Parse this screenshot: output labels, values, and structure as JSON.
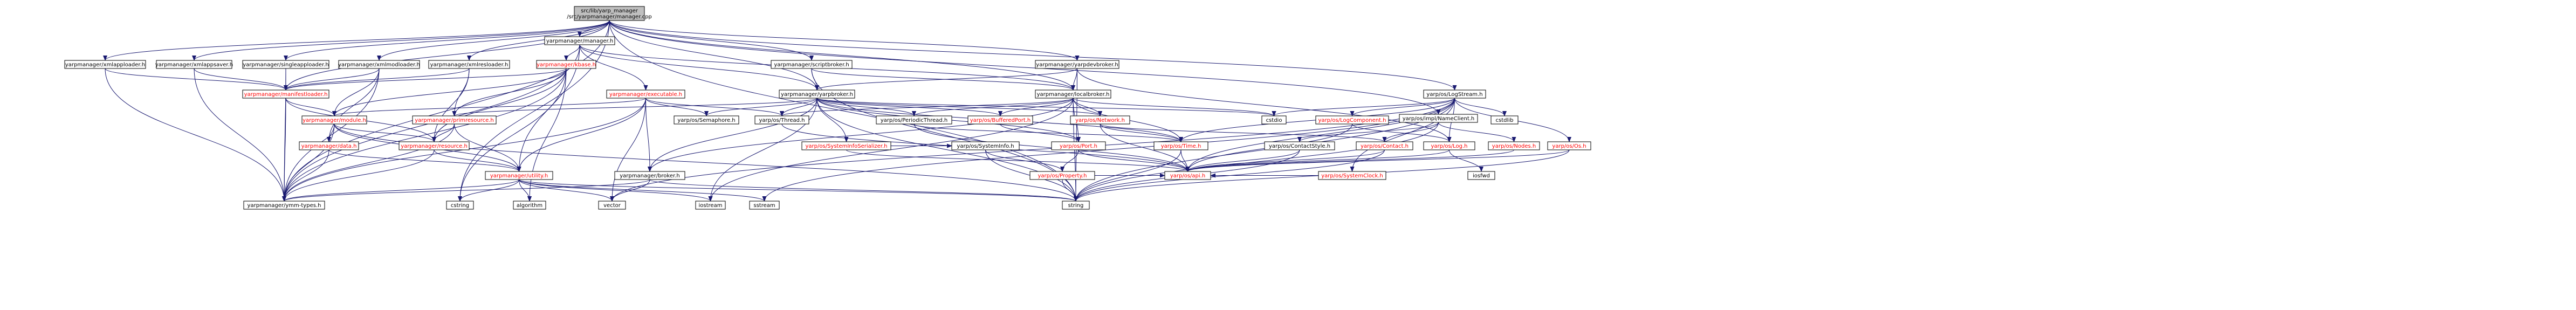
{
  "colors": {
    "edge": "#191970",
    "node_border": "#000000",
    "node_fill": "#ffffff",
    "root_fill": "#bfbfbf",
    "text_normal": "#000000",
    "text_link": "#ff0000"
  },
  "root": {
    "line1": "src/lib/yarp_manager",
    "line2": "/src/yarpmanager/manager.cpp"
  },
  "nodes": [
    {
      "id": "root",
      "label": "src/lib/yarp_manager\n/src/yarpmanager/manager.cpp",
      "kind": "root"
    },
    {
      "id": "xmlapploader",
      "label": "yarpmanager/xmlapploader.h",
      "kind": "normal"
    },
    {
      "id": "xmlappsaver",
      "label": "yarpmanager/xmlappsaver.h",
      "kind": "normal"
    },
    {
      "id": "singleapploader",
      "label": "yarpmanager/singleapploader.h",
      "kind": "normal"
    },
    {
      "id": "xmlmodloader",
      "label": "yarpmanager/xmlmodloader.h",
      "kind": "normal"
    },
    {
      "id": "xmlresloader",
      "label": "yarpmanager/xmlresloader.h",
      "kind": "normal"
    },
    {
      "id": "manager_h",
      "label": "yarpmanager/manager.h",
      "kind": "normal"
    },
    {
      "id": "kbase",
      "label": "yarpmanager/kbase.h",
      "kind": "link"
    },
    {
      "id": "scriptbroker",
      "label": "yarpmanager/scriptbroker.h",
      "kind": "normal"
    },
    {
      "id": "yarpdevbroker",
      "label": "yarpmanager/yarpdevbroker.h",
      "kind": "normal"
    },
    {
      "id": "manifestloader",
      "label": "yarpmanager/manifestloader.h",
      "kind": "link"
    },
    {
      "id": "executable",
      "label": "yarpmanager/executable.h",
      "kind": "link"
    },
    {
      "id": "yarpbroker",
      "label": "yarpmanager/yarpbroker.h",
      "kind": "normal"
    },
    {
      "id": "localbroker",
      "label": "yarpmanager/localbroker.h",
      "kind": "normal"
    },
    {
      "id": "logstream",
      "label": "yarp/os/LogStream.h",
      "kind": "normal"
    },
    {
      "id": "module",
      "label": "yarpmanager/module.h",
      "kind": "link"
    },
    {
      "id": "primresource",
      "label": "yarpmanager/primresource.h",
      "kind": "link"
    },
    {
      "id": "semaphore",
      "label": "yarp/os/Semaphore.h",
      "kind": "normal"
    },
    {
      "id": "thread",
      "label": "yarp/os/Thread.h",
      "kind": "normal"
    },
    {
      "id": "periodicthread",
      "label": "yarp/os/PeriodicThread.h",
      "kind": "normal"
    },
    {
      "id": "bufferedport",
      "label": "yarp/os/BufferedPort.h",
      "kind": "link"
    },
    {
      "id": "network",
      "label": "yarp/os/Network.h",
      "kind": "link"
    },
    {
      "id": "cstdio",
      "label": "cstdio",
      "kind": "normal"
    },
    {
      "id": "logcomponent",
      "label": "yarp/os/LogComponent.h",
      "kind": "link"
    },
    {
      "id": "namelient",
      "label": "yarp/os/impl/NameClient.h",
      "kind": "normal"
    },
    {
      "id": "cstdlib",
      "label": "cstdlib",
      "kind": "normal"
    },
    {
      "id": "systeminfoserializer",
      "label": "yarp/os/SystemInfoSerializer.h",
      "kind": "link"
    },
    {
      "id": "data",
      "label": "yarpmanager/data.h",
      "kind": "link"
    },
    {
      "id": "resource",
      "label": "yarpmanager/resource.h",
      "kind": "link"
    },
    {
      "id": "systeminfo",
      "label": "yarp/os/SystemInfo.h",
      "kind": "normal"
    },
    {
      "id": "port",
      "label": "yarp/os/Port.h",
      "kind": "link"
    },
    {
      "id": "time",
      "label": "yarp/os/Time.h",
      "kind": "link"
    },
    {
      "id": "contactstyle",
      "label": "yarp/os/ContactStyle.h",
      "kind": "normal"
    },
    {
      "id": "contact",
      "label": "yarp/os/Contact.h",
      "kind": "link"
    },
    {
      "id": "log",
      "label": "yarp/os/Log.h",
      "kind": "link"
    },
    {
      "id": "nodes",
      "label": "yarp/os/Nodes.h",
      "kind": "link"
    },
    {
      "id": "os",
      "label": "yarp/os/Os.h",
      "kind": "link"
    },
    {
      "id": "broker",
      "label": "yarpmanager/broker.h",
      "kind": "normal"
    },
    {
      "id": "utility",
      "label": "yarpmanager/utility.h",
      "kind": "link"
    },
    {
      "id": "property",
      "label": "yarp/os/Property.h",
      "kind": "link"
    },
    {
      "id": "api",
      "label": "yarp/os/api.h",
      "kind": "link"
    },
    {
      "id": "systemclock",
      "label": "yarp/os/SystemClock.h",
      "kind": "link"
    },
    {
      "id": "iosfwd",
      "label": "iosfwd",
      "kind": "normal"
    },
    {
      "id": "ymmtypes",
      "label": "yarpmanager/ymm-types.h",
      "kind": "normal"
    },
    {
      "id": "cstring",
      "label": "cstring",
      "kind": "normal"
    },
    {
      "id": "algorithm",
      "label": "algorithm",
      "kind": "normal"
    },
    {
      "id": "vector",
      "label": "vector",
      "kind": "normal"
    },
    {
      "id": "iostream",
      "label": "iostream",
      "kind": "normal"
    },
    {
      "id": "sstream",
      "label": "sstream",
      "kind": "normal"
    },
    {
      "id": "string",
      "label": "string",
      "kind": "normal"
    }
  ],
  "edges": [
    [
      "root",
      "xmlapploader"
    ],
    [
      "root",
      "xmlappsaver"
    ],
    [
      "root",
      "singleapploader"
    ],
    [
      "root",
      "xmlmodloader"
    ],
    [
      "root",
      "xmlresloader"
    ],
    [
      "root",
      "manager_h"
    ],
    [
      "root",
      "scriptbroker"
    ],
    [
      "root",
      "yarpdevbroker"
    ],
    [
      "root",
      "logstream"
    ],
    [
      "root",
      "namelient"
    ],
    [
      "root",
      "yarpbroker"
    ],
    [
      "root",
      "localbroker"
    ],
    [
      "root",
      "cstring"
    ],
    [
      "root",
      "ymmtypes"
    ],
    [
      "root",
      "manifestloader"
    ],
    [
      "root",
      "string"
    ],
    [
      "xmlapploader",
      "manifestloader"
    ],
    [
      "xmlapploader",
      "ymmtypes"
    ],
    [
      "xmlappsaver",
      "manifestloader"
    ],
    [
      "xmlappsaver",
      "ymmtypes"
    ],
    [
      "singleapploader",
      "manifestloader"
    ],
    [
      "singleapploader",
      "ymmtypes"
    ],
    [
      "xmlmodloader",
      "manifestloader"
    ],
    [
      "xmlmodloader",
      "module"
    ],
    [
      "xmlmodloader",
      "ymmtypes"
    ],
    [
      "xmlmodloader",
      "data"
    ],
    [
      "xmlresloader",
      "manifestloader"
    ],
    [
      "xmlresloader",
      "primresource"
    ],
    [
      "xmlresloader",
      "resource"
    ],
    [
      "manager_h",
      "kbase"
    ],
    [
      "manager_h",
      "executable"
    ],
    [
      "manager_h",
      "yarpbroker"
    ],
    [
      "manager_h",
      "localbroker"
    ],
    [
      "manager_h",
      "utility"
    ],
    [
      "manager_h",
      "ymmtypes"
    ],
    [
      "kbase",
      "manifestloader"
    ],
    [
      "kbase",
      "module"
    ],
    [
      "kbase",
      "primresource"
    ],
    [
      "kbase",
      "resource"
    ],
    [
      "kbase",
      "ymmtypes"
    ],
    [
      "kbase",
      "cstring"
    ],
    [
      "kbase",
      "algorithm"
    ],
    [
      "scriptbroker",
      "localbroker"
    ],
    [
      "scriptbroker",
      "yarpbroker"
    ],
    [
      "scriptbroker",
      "string"
    ],
    [
      "yarpdevbroker",
      "yarpbroker"
    ],
    [
      "yarpdevbroker",
      "localbroker"
    ],
    [
      "yarpdevbroker",
      "log"
    ],
    [
      "yarpdevbroker",
      "string"
    ],
    [
      "manifestloader",
      "module"
    ],
    [
      "manifestloader",
      "ymmtypes"
    ],
    [
      "manifestloader",
      "resource"
    ],
    [
      "executable",
      "module"
    ],
    [
      "executable",
      "broker"
    ],
    [
      "executable",
      "semaphore"
    ],
    [
      "executable",
      "thread"
    ],
    [
      "executable",
      "utility"
    ],
    [
      "executable",
      "vector"
    ],
    [
      "executable",
      "ymmtypes"
    ],
    [
      "yarpbroker",
      "broker"
    ],
    [
      "yarpbroker",
      "primresource"
    ],
    [
      "yarpbroker",
      "semaphore"
    ],
    [
      "yarpbroker",
      "thread"
    ],
    [
      "yarpbroker",
      "periodicthread"
    ],
    [
      "yarpbroker",
      "bufferedport"
    ],
    [
      "yarpbroker",
      "network"
    ],
    [
      "yarpbroker",
      "systeminfoserializer"
    ],
    [
      "yarpbroker",
      "port"
    ],
    [
      "yarpbroker",
      "string"
    ],
    [
      "yarpbroker",
      "iostream"
    ],
    [
      "yarpbroker",
      "cstdio"
    ],
    [
      "yarpbroker",
      "time"
    ],
    [
      "localbroker",
      "broker"
    ],
    [
      "localbroker",
      "thread"
    ],
    [
      "localbroker",
      "periodicthread"
    ],
    [
      "localbroker",
      "bufferedport"
    ],
    [
      "localbroker",
      "network"
    ],
    [
      "localbroker",
      "cstdio"
    ],
    [
      "localbroker",
      "port"
    ],
    [
      "localbroker",
      "string"
    ],
    [
      "localbroker",
      "iostream"
    ],
    [
      "localbroker",
      "time"
    ],
    [
      "logstream",
      "logcomponent"
    ],
    [
      "logstream",
      "log"
    ],
    [
      "logstream",
      "os"
    ],
    [
      "logstream",
      "systemclock"
    ],
    [
      "logstream",
      "time"
    ],
    [
      "logstream",
      "cstdio"
    ],
    [
      "logstream",
      "cstdlib"
    ],
    [
      "logstream",
      "string"
    ],
    [
      "logstream",
      "sstream"
    ],
    [
      "logstream",
      "vector"
    ],
    [
      "logstream",
      "api"
    ],
    [
      "module",
      "data"
    ],
    [
      "module",
      "resource"
    ],
    [
      "module",
      "utility"
    ],
    [
      "module",
      "ymmtypes"
    ],
    [
      "module",
      "string"
    ],
    [
      "primresource",
      "resource"
    ],
    [
      "primresource",
      "ymmtypes"
    ],
    [
      "primresource",
      "utility"
    ],
    [
      "resource",
      "utility"
    ],
    [
      "resource",
      "ymmtypes"
    ],
    [
      "data",
      "utility"
    ],
    [
      "data",
      "ymmtypes"
    ],
    [
      "thread",
      "api"
    ],
    [
      "periodicthread",
      "api"
    ],
    [
      "periodicthread",
      "time"
    ],
    [
      "bufferedport",
      "port"
    ],
    [
      "network",
      "contact"
    ],
    [
      "network",
      "time"
    ],
    [
      "network",
      "api"
    ],
    [
      "logcomponent",
      "log"
    ],
    [
      "logcomponent",
      "api"
    ],
    [
      "namelient",
      "contact"
    ],
    [
      "namelient",
      "contactstyle"
    ],
    [
      "namelient",
      "nodes"
    ],
    [
      "namelient",
      "string"
    ],
    [
      "systeminfoserializer",
      "systeminfo"
    ],
    [
      "systeminfoserializer",
      "api"
    ],
    [
      "systeminfo",
      "property"
    ],
    [
      "systeminfo",
      "string"
    ],
    [
      "port",
      "api"
    ],
    [
      "port",
      "property"
    ],
    [
      "time",
      "api"
    ],
    [
      "time",
      "string"
    ],
    [
      "contactstyle",
      "api"
    ],
    [
      "contactstyle",
      "string"
    ],
    [
      "contact",
      "api"
    ],
    [
      "contact",
      "string"
    ],
    [
      "log",
      "api"
    ],
    [
      "log",
      "iosfwd"
    ],
    [
      "nodes",
      "api"
    ],
    [
      "os",
      "api"
    ],
    [
      "os",
      "string"
    ],
    [
      "broker",
      "vector"
    ],
    [
      "broker",
      "string"
    ],
    [
      "broker",
      "ymmtypes"
    ],
    [
      "utility",
      "ymmtypes"
    ],
    [
      "utility",
      "cstring"
    ],
    [
      "utility",
      "algorithm"
    ],
    [
      "utility",
      "vector"
    ],
    [
      "utility",
      "iostream"
    ],
    [
      "utility",
      "sstream"
    ],
    [
      "utility",
      "string"
    ],
    [
      "property",
      "string"
    ],
    [
      "property",
      "api"
    ],
    [
      "systemclock",
      "api"
    ]
  ]
}
